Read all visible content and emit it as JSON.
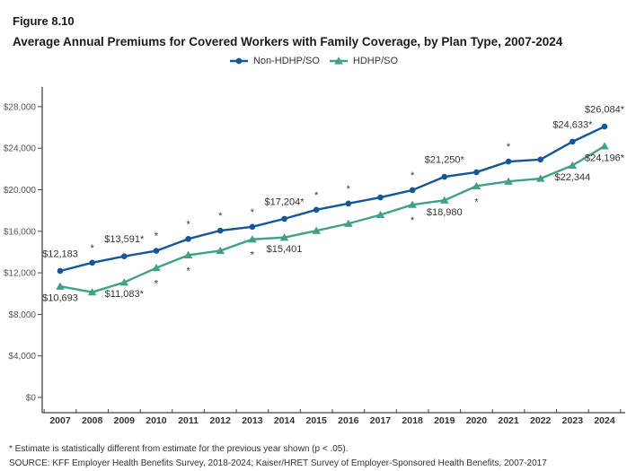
{
  "figure_label": "Figure 8.10",
  "title": "Average Annual Premiums for Covered Workers with Family Coverage, by Plan Type, 2007-2024",
  "footnotes": {
    "significance": "* Estimate is statistically different from estimate for the previous year shown (p < .05).",
    "source": "SOURCE: KFF Employer Health Benefits Survey, 2018-2024; Kaiser/HRET Survey of Employer-Sponsored Health Benefits, 2007-2017"
  },
  "chart_data": {
    "type": "line",
    "title": "Average Annual Premiums for Covered Workers with Family Coverage, by Plan Type, 2007-2024",
    "categories": [
      "2007",
      "2008",
      "2009",
      "2010",
      "2011",
      "2012",
      "2013",
      "2014",
      "2015",
      "2016",
      "2017",
      "2018",
      "2019",
      "2020",
      "2021",
      "2022",
      "2023",
      "2024"
    ],
    "ylim": [
      0,
      28000
    ],
    "ytick_step": 4000,
    "ytick_labels": [
      "$0",
      "$4,000",
      "$8,000",
      "$12,000",
      "$16,000",
      "$20,000",
      "$24,000",
      "$28,000"
    ],
    "grid": false,
    "legend_position": "top-center",
    "series": [
      {
        "name": "Non-HDHP/SO",
        "color": "#14569B",
        "marker": "circle",
        "label_side": "above",
        "values": [
          12183,
          12973,
          13591,
          14118,
          15264,
          16067,
          16434,
          17204,
          18074,
          18673,
          19261,
          19961,
          21250,
          21691,
          22716,
          22911,
          24633,
          26084
        ],
        "point_labels": [
          {
            "year": "2007",
            "text": "$12,183"
          },
          {
            "year": "2009",
            "text": "$13,591*"
          },
          {
            "year": "2014",
            "text": "$17,204*"
          },
          {
            "year": "2019",
            "text": "$21,250*"
          },
          {
            "year": "2023",
            "text": "$24,633*"
          },
          {
            "year": "2024",
            "text": "$26,084*"
          }
        ],
        "significance_asterisk_years": [
          "2008",
          "2010",
          "2011",
          "2012",
          "2013",
          "2015",
          "2016",
          "2018",
          "2021"
        ]
      },
      {
        "name": "HDHP/SO",
        "color": "#3FA188",
        "marker": "triangle",
        "label_side": "below",
        "values": [
          10693,
          10134,
          11083,
          12470,
          13704,
          14129,
          15227,
          15401,
          16056,
          16737,
          17581,
          18557,
          18980,
          20359,
          20802,
          21079,
          22344,
          24196
        ],
        "point_labels": [
          {
            "year": "2007",
            "text": "$10,693"
          },
          {
            "year": "2009",
            "text": "$11,083*"
          },
          {
            "year": "2014",
            "text": "$15,401"
          },
          {
            "year": "2019",
            "text": "$18,980"
          },
          {
            "year": "2023",
            "text": "$22,344"
          },
          {
            "year": "2024",
            "text": "$24,196*"
          }
        ],
        "significance_asterisk_years": [
          "2010",
          "2011",
          "2013",
          "2018",
          "2020"
        ]
      }
    ]
  }
}
